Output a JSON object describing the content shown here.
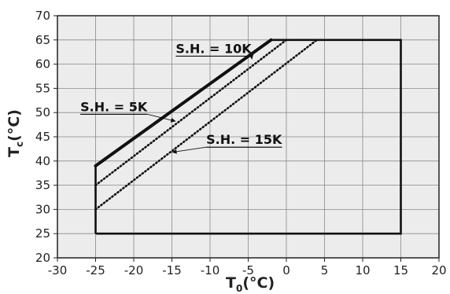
{
  "chart_data": {
    "type": "line",
    "xlabel": {
      "main": "T",
      "sub": "0",
      "unit": "(°C)"
    },
    "ylabel": {
      "main": "T",
      "sub": "c",
      "unit": "(°C)"
    },
    "xlim": [
      -30,
      20
    ],
    "ylim": [
      20,
      70
    ],
    "xticks": [
      "-30",
      "-25",
      "-20",
      "-15",
      "-10",
      "-5",
      "0",
      "5",
      "10",
      "15",
      "20"
    ],
    "yticks": [
      "20",
      "25",
      "30",
      "35",
      "40",
      "45",
      "50",
      "55",
      "60",
      "65",
      "70"
    ],
    "grid": true,
    "plot_background": "#ececec",
    "envelope": [
      [
        -25,
        25
      ],
      [
        15,
        25
      ],
      [
        15,
        65
      ],
      [
        -2,
        65
      ],
      [
        -25,
        39
      ],
      [
        -25,
        25
      ]
    ],
    "series": [
      {
        "name": "S.H. = 10K",
        "style": "solid",
        "points": [
          [
            -25,
            39
          ],
          [
            -2,
            65
          ]
        ]
      },
      {
        "name": "S.H. = 5K",
        "style": "dotted",
        "points": [
          [
            -25,
            35
          ],
          [
            0,
            65
          ]
        ]
      },
      {
        "name": "S.H. = 15K",
        "style": "dotted",
        "points": [
          [
            -25,
            30
          ],
          [
            4,
            65
          ]
        ]
      }
    ],
    "annotations": [
      {
        "text": "S.H. = 10K",
        "x": -14.5,
        "y": 62.3,
        "arrow_to": [
          -4.5,
          61.0
        ]
      },
      {
        "text": "S.H. = 5K",
        "x": -27,
        "y": 50.3,
        "arrow_to": [
          -14.5,
          48.2
        ]
      },
      {
        "text": "S.H. = 15K",
        "x": -10.5,
        "y": 43.5,
        "arrow_to": [
          -15.0,
          41.8
        ]
      }
    ]
  }
}
